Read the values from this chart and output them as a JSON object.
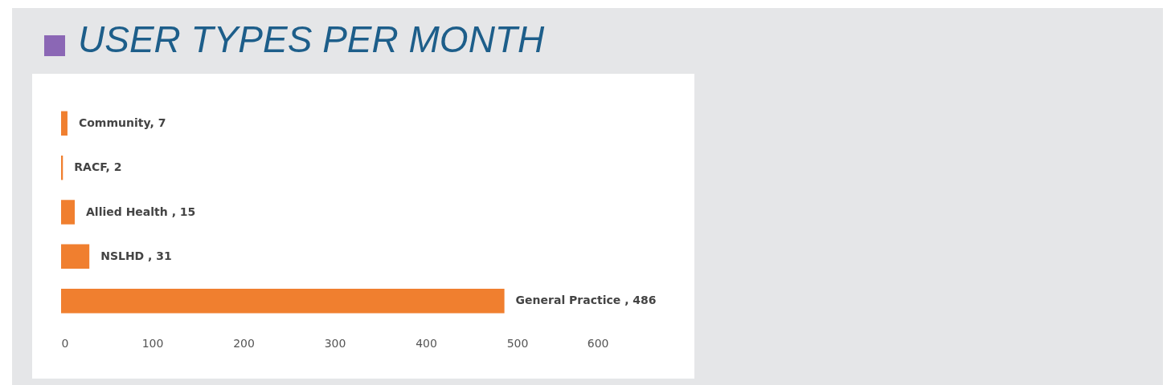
{
  "chart_data": {
    "type": "bar",
    "title": "USER TYPES PER MONTH",
    "orientation": "horizontal",
    "categories": [
      null,
      null,
      null,
      null,
      null
    ],
    "values": [
      7,
      2,
      15,
      31,
      486
    ],
    "value_labels": [
      "Community, 7",
      "RACF, 2",
      "Allied Health , 15",
      "NSLHD , 31",
      "General Practice , 486"
    ],
    "color": "#f07f2f",
    "xlim": [
      0,
      600
    ],
    "xticks": [
      0,
      100,
      200,
      300,
      400,
      500,
      600
    ],
    "tick_labels": "x",
    "grid": false
  }
}
